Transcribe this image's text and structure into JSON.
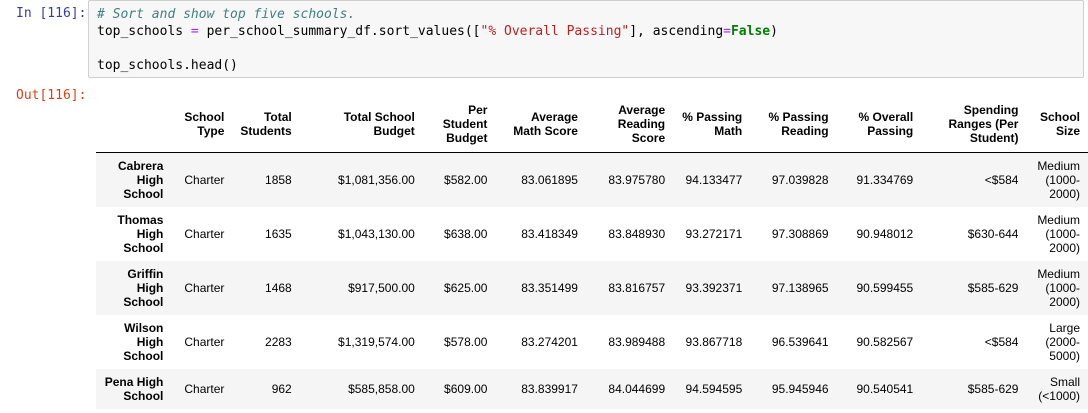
{
  "input_prompt": "In [116]:",
  "output_prompt": "Out[116]:",
  "code": {
    "comment": "# Sort and show top five schools.",
    "line2_a": "top_schools ",
    "line2_eq": "=",
    "line2_b": " per_school_summary_df.sort_values([",
    "line2_str": "\"% Overall Passing\"",
    "line2_c": "], ascending",
    "line2_eq2": "=",
    "line2_kw": "False",
    "line2_d": ")",
    "line3": "top_schools.head()"
  },
  "table": {
    "columns": [
      "School Type",
      "Total Students",
      "Total School Budget",
      "Per Student Budget",
      "Average Math Score",
      "Average Reading Score",
      "% Passing Math",
      "% Passing Reading",
      "% Overall Passing",
      "Spending Ranges (Per Student)",
      "School Size"
    ],
    "rows": [
      {
        "index": "Cabrera High School",
        "values": [
          "Charter",
          "1858",
          "$1,081,356.00",
          "$582.00",
          "83.061895",
          "83.975780",
          "94.133477",
          "97.039828",
          "91.334769",
          "<$584",
          "Medium (1000-2000)"
        ]
      },
      {
        "index": "Thomas High School",
        "values": [
          "Charter",
          "1635",
          "$1,043,130.00",
          "$638.00",
          "83.418349",
          "83.848930",
          "93.272171",
          "97.308869",
          "90.948012",
          "$630-644",
          "Medium (1000-2000)"
        ]
      },
      {
        "index": "Griffin High School",
        "values": [
          "Charter",
          "1468",
          "$917,500.00",
          "$625.00",
          "83.351499",
          "83.816757",
          "93.392371",
          "97.138965",
          "90.599455",
          "$585-629",
          "Medium (1000-2000)"
        ]
      },
      {
        "index": "Wilson High School",
        "values": [
          "Charter",
          "2283",
          "$1,319,574.00",
          "$578.00",
          "83.274201",
          "83.989488",
          "93.867718",
          "96.539641",
          "90.582567",
          "<$584",
          "Large (2000-5000)"
        ]
      },
      {
        "index": "Pena High School",
        "values": [
          "Charter",
          "962",
          "$585,858.00",
          "$609.00",
          "83.839917",
          "84.044699",
          "94.594595",
          "95.945946",
          "90.540541",
          "$585-629",
          "Small (<1000)"
        ]
      }
    ]
  }
}
